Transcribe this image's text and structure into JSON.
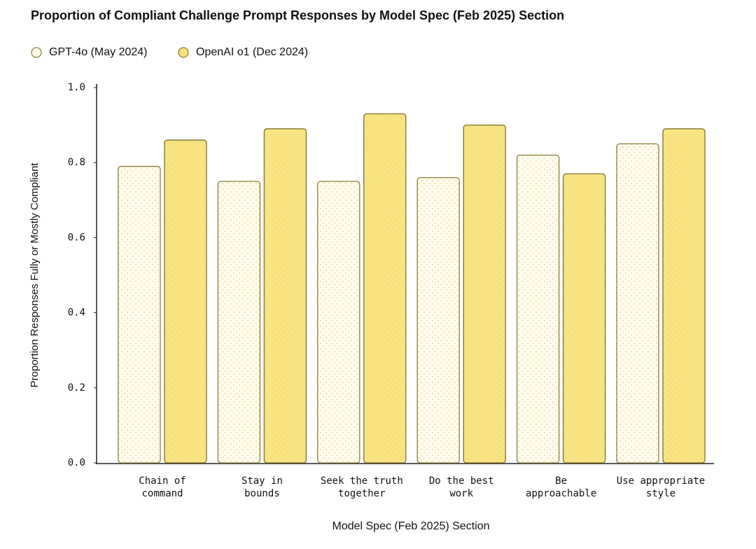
{
  "chart_data": {
    "type": "bar",
    "title": "Proportion of Compliant Challenge Prompt Responses by Model Spec (Feb 2025) Section",
    "xlabel": "Model Spec (Feb 2025) Section",
    "ylabel": "Proportion Responses Fully or Mostly Compliant",
    "categories": [
      "Chain of\ncommand",
      "Stay in\nbounds",
      "Seek the truth\ntogether",
      "Do the best\nwork",
      "Be\napproachable",
      "Use appropriate\nstyle"
    ],
    "series": [
      {
        "name": "GPT-4o (May 2024)",
        "color": "#fdf9e6",
        "values": [
          0.79,
          0.75,
          0.75,
          0.76,
          0.82,
          0.85
        ]
      },
      {
        "name": "OpenAI o1 (Dec 2024)",
        "color": "#f8e27e",
        "values": [
          0.86,
          0.89,
          0.93,
          0.9,
          0.77,
          0.89
        ]
      }
    ],
    "ylim": [
      0,
      1
    ],
    "yticks": [
      {
        "value": 0,
        "label": "0.0"
      },
      0.2,
      0.4,
      0.6,
      0.8,
      {
        "value": 1,
        "label": "1.0"
      }
    ],
    "legend": "top-left"
  }
}
